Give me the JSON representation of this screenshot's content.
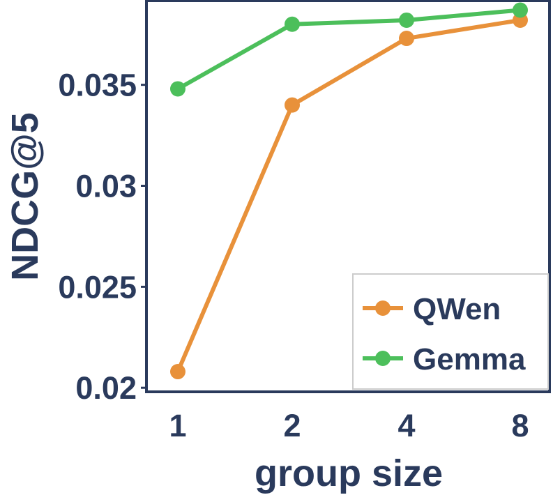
{
  "chart_data": {
    "type": "line",
    "title": "",
    "xlabel": "group size",
    "ylabel": "NDCG@5",
    "categories": [
      "1",
      "2",
      "4",
      "8"
    ],
    "yticks": [
      "0.02",
      "0.025",
      "0.03",
      "0.035"
    ],
    "ylim": [
      0.0198,
      0.0392
    ],
    "grid": false,
    "legend_position": "bottom-right",
    "series": [
      {
        "name": "QWen",
        "color": "#e8913a",
        "values": [
          0.0208,
          0.034,
          0.0373,
          0.0382
        ]
      },
      {
        "name": "Gemma",
        "color": "#4cbf5b",
        "values": [
          0.0348,
          0.038,
          0.0382,
          0.0387
        ]
      }
    ],
    "axis_color": "#2a3a5c",
    "text_color": "#2a3a5c"
  }
}
